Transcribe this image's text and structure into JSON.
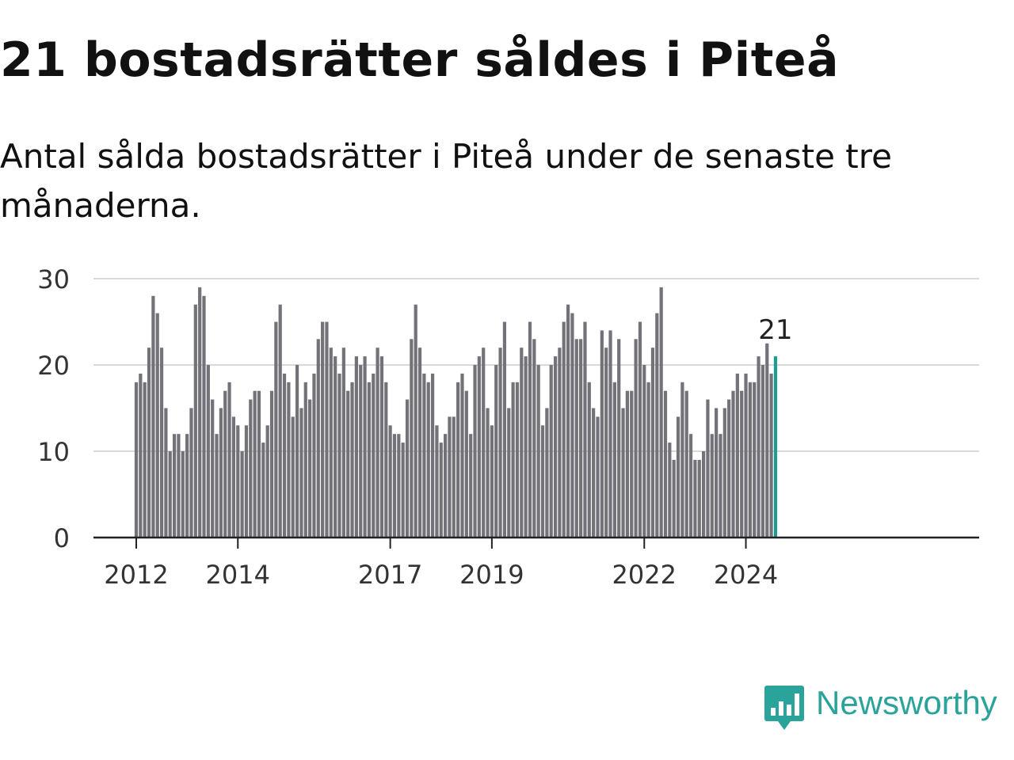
{
  "title": "21 bostadsrätter såldes i Piteå",
  "subtitle": "Antal sålda bostadsrätter i Piteå under de senaste tre månaderna.",
  "colors": {
    "bar": "#737278",
    "highlight": "#1a9e8f",
    "grid": "#d9d9d9",
    "axis": "#222222",
    "brand": "#2aa39b"
  },
  "brand": {
    "name": "Newsworthy",
    "icon": "newsworthy-chat-bar-icon"
  },
  "chart_data": {
    "type": "bar",
    "title": "21 bostadsrätter såldes i Piteå",
    "xlabel": "",
    "ylabel": "",
    "ylim": [
      0,
      30
    ],
    "yticks": [
      0,
      10,
      20,
      30
    ],
    "xtick_labels": [
      "2012",
      "2014",
      "2017",
      "2019",
      "2022",
      "2024"
    ],
    "xtick_month_index": [
      0,
      24,
      60,
      84,
      120,
      144
    ],
    "first_month": "2012-01",
    "annotation": {
      "label": "21",
      "target": "last"
    },
    "values": [
      18,
      19,
      18,
      22,
      28,
      26,
      22,
      15,
      10,
      12,
      12,
      10,
      12,
      15,
      27,
      29,
      28,
      20,
      16,
      12,
      15,
      17,
      18,
      14,
      13,
      10,
      13,
      16,
      17,
      17,
      11,
      13,
      17,
      25,
      27,
      19,
      18,
      14,
      20,
      15,
      18,
      16,
      19,
      23,
      25,
      25,
      22,
      21,
      19,
      22,
      17,
      18,
      21,
      20,
      21,
      18,
      19,
      22,
      21,
      18,
      13,
      12,
      12,
      11,
      16,
      23,
      27,
      22,
      19,
      18,
      19,
      13,
      11,
      12,
      14,
      14,
      18,
      19,
      17,
      12,
      20,
      21,
      22,
      15,
      13,
      20,
      22,
      25,
      15,
      18,
      18,
      22,
      21,
      25,
      23,
      20,
      13,
      15,
      20,
      21,
      22,
      25,
      27,
      26,
      23,
      23,
      25,
      18,
      15,
      14,
      24,
      22,
      24,
      18,
      23,
      15,
      17,
      17,
      23,
      25,
      20,
      18,
      22,
      26,
      29,
      17,
      11,
      9,
      14,
      18,
      17,
      12,
      9,
      9,
      10,
      16,
      12,
      15,
      12,
      15,
      16,
      17,
      19,
      17,
      19,
      18,
      18,
      21,
      20,
      22.5,
      19,
      21
    ]
  }
}
